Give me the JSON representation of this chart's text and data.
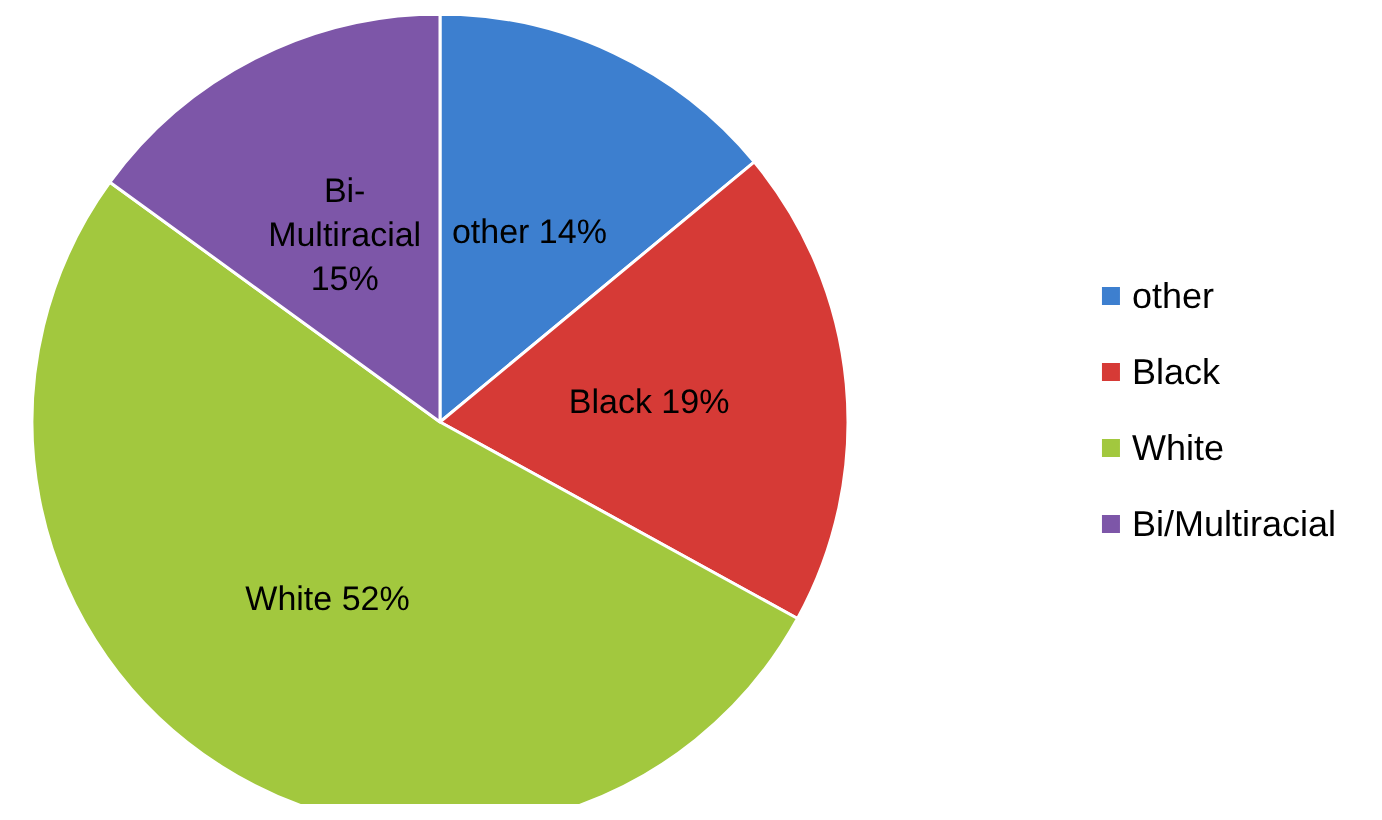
{
  "chart_data": {
    "type": "pie",
    "categories": [
      "other",
      "Black",
      "White",
      "Bi/Multiracial"
    ],
    "values": [
      14,
      19,
      52,
      15
    ],
    "colors": [
      "#3d7fcf",
      "#d63a36",
      "#a2c83e",
      "#7d56a8"
    ],
    "value_labels": [
      "other 14%",
      "Black 19%",
      "White 52%",
      "Bi-Multiracial 15%"
    ],
    "legend": "right"
  }
}
